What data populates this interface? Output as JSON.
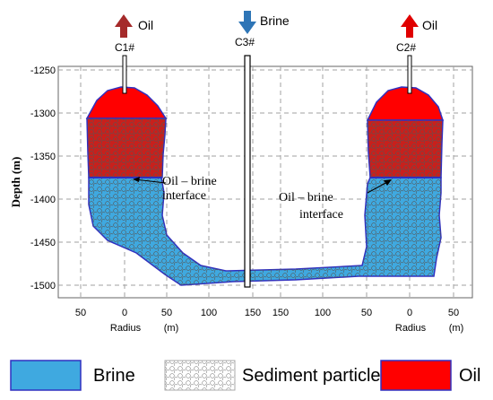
{
  "wells": [
    {
      "name": "C1#",
      "flow": "Oil",
      "direction": "up",
      "color": "#A52A2A"
    },
    {
      "name": "C3#",
      "flow": "Brine",
      "direction": "down",
      "color": "#2E75B6"
    },
    {
      "name": "C2#",
      "flow": "Oil",
      "direction": "up",
      "color": "#E00000"
    }
  ],
  "y_axis": {
    "label": "Depth (m)",
    "ticks": [
      "-1250",
      "-1300",
      "-1350",
      "-1400",
      "-1450",
      "-1500"
    ]
  },
  "x_axis": {
    "label_left": "Radius",
    "unit_left": "(m)",
    "label_right": "Radius",
    "unit_right": "(m)",
    "ticks": [
      "50",
      "0",
      "50",
      "100",
      "150",
      "150",
      "100",
      "50",
      "0",
      "50"
    ]
  },
  "interface_labels": [
    {
      "line1": "Oil – brine",
      "line2": "interface"
    },
    {
      "line1": "Oil – brine",
      "line2": "interface"
    }
  ],
  "legend": [
    {
      "label": "Brine",
      "color": "#3FA9E0"
    },
    {
      "label": "Sediment particles",
      "color": "#E6E6E6"
    },
    {
      "label": "Oil",
      "color": "#FF0000"
    }
  ],
  "colors": {
    "brine": "#3FA9E0",
    "oil": "#FF0000",
    "oil_sediment": "#C8201C",
    "outline": "#3030C0",
    "grid": "#A0A0A0"
  }
}
